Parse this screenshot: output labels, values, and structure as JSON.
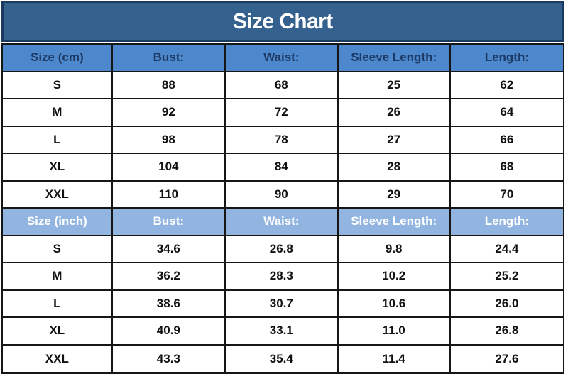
{
  "title": "Size Chart",
  "colors": {
    "title_bar_bg": "#35618E",
    "title_bar_border": "#1B3A5F",
    "title_text": "#FFFFFF",
    "cm_header_bg": "#4C88CB",
    "cm_header_text": "#1D3A66",
    "inch_header_bg": "#92B4E0",
    "inch_header_text": "#FFFFFF",
    "cell_bg": "#FFFFFF",
    "cell_text": "#111111",
    "grid_border": "#161616"
  },
  "chart_data": [
    {
      "type": "table",
      "title": "Size Chart",
      "unit": "cm",
      "columns": [
        "Size (cm)",
        "Bust:",
        "Waist:",
        "Sleeve Length:",
        "Length:"
      ],
      "rows": [
        [
          "S",
          "88",
          "68",
          "25",
          "62"
        ],
        [
          "M",
          "92",
          "72",
          "26",
          "64"
        ],
        [
          "L",
          "98",
          "78",
          "27",
          "66"
        ],
        [
          "XL",
          "104",
          "84",
          "28",
          "68"
        ],
        [
          "XXL",
          "110",
          "90",
          "29",
          "70"
        ]
      ]
    },
    {
      "type": "table",
      "title": "Size Chart",
      "unit": "inch",
      "columns": [
        "Size (inch)",
        "Bust:",
        "Waist:",
        "Sleeve Length:",
        "Length:"
      ],
      "rows": [
        [
          "S",
          "34.6",
          "26.8",
          "9.8",
          "24.4"
        ],
        [
          "M",
          "36.2",
          "28.3",
          "10.2",
          "25.2"
        ],
        [
          "L",
          "38.6",
          "30.7",
          "10.6",
          "26.0"
        ],
        [
          "XL",
          "40.9",
          "33.1",
          "11.0",
          "26.8"
        ],
        [
          "XXL",
          "43.3",
          "35.4",
          "11.4",
          "27.6"
        ]
      ]
    }
  ]
}
